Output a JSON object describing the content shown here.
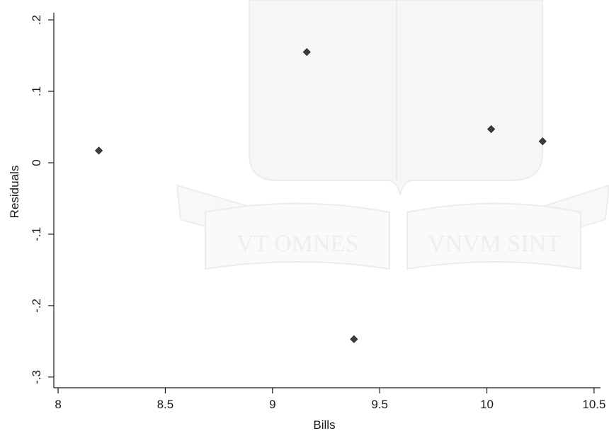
{
  "chart_data": {
    "type": "scatter",
    "xlabel": "Bills",
    "ylabel": "Residuals",
    "xlim": [
      7.98,
      10.53
    ],
    "ylim": [
      -0.315,
      0.21
    ],
    "x_ticks": [
      8,
      8.5,
      9,
      9.5,
      10,
      10.5
    ],
    "x_tick_labels": [
      "8",
      "8.5",
      "9",
      "9.5",
      "10",
      "10.5"
    ],
    "y_ticks": [
      -0.3,
      -0.2,
      -0.1,
      0,
      0.1,
      0.2
    ],
    "y_tick_labels": [
      "-.3",
      "-.2",
      "-.1",
      "0",
      ".1",
      ".2"
    ],
    "grid": false,
    "legend": "none",
    "marker": "diamond",
    "marker_color": "#3d3d3d",
    "series": [
      {
        "points": [
          {
            "x": 8.19,
            "y": 0.017
          },
          {
            "x": 9.16,
            "y": 0.155
          },
          {
            "x": 9.38,
            "y": -0.247
          },
          {
            "x": 10.02,
            "y": 0.047
          },
          {
            "x": 10.26,
            "y": 0.03
          }
        ]
      }
    ]
  },
  "watermark": {
    "motto_left": "VT OMNES",
    "motto_right": "VNVM SINT",
    "color": "#f3f3f3"
  }
}
